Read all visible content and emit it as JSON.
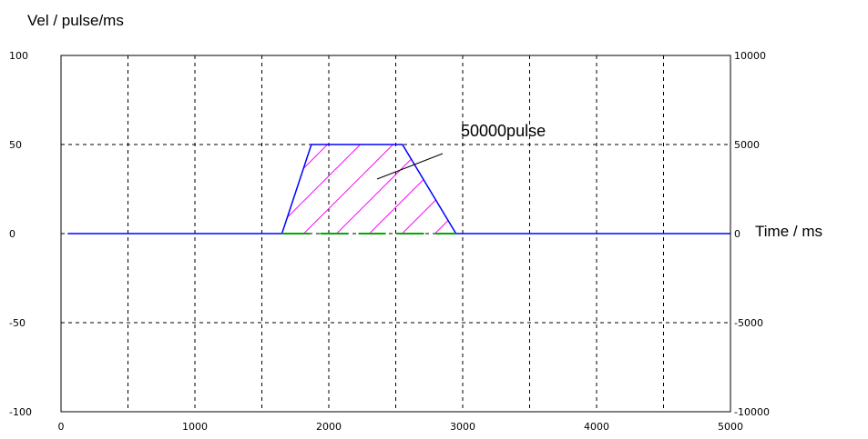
{
  "chart_data": {
    "type": "line",
    "title": "",
    "ylabel": "Vel / pulse/ms",
    "xlabel": "Time /  ms",
    "xlim": [
      0,
      5000
    ],
    "ylim": [
      -100,
      100
    ],
    "y2lim": [
      -10000,
      10000
    ],
    "x_ticks": [
      "0",
      "1000",
      "2000",
      "3000",
      "4000",
      "5000"
    ],
    "y_ticks": [
      "100",
      "50",
      "0",
      "-50",
      "-100"
    ],
    "y2_ticks": [
      "10000",
      "5000",
      "0",
      "-5000",
      "-10000"
    ],
    "grid": true,
    "legend": "none",
    "series": [
      {
        "color": "#0000ff",
        "x": [
          50,
          1650,
          1870,
          2550,
          2950,
          5000
        ],
        "values": [
          0,
          0,
          50,
          50,
          0,
          0
        ]
      },
      {
        "color": "#00aa00",
        "style": "dashed",
        "x": [
          1650,
          2950
        ],
        "values": [
          0,
          0
        ]
      }
    ],
    "annotations": [
      {
        "text": "50000pulse",
        "type": "area-label",
        "fill": "hatched",
        "fill_color": "#ff00ff"
      }
    ]
  }
}
